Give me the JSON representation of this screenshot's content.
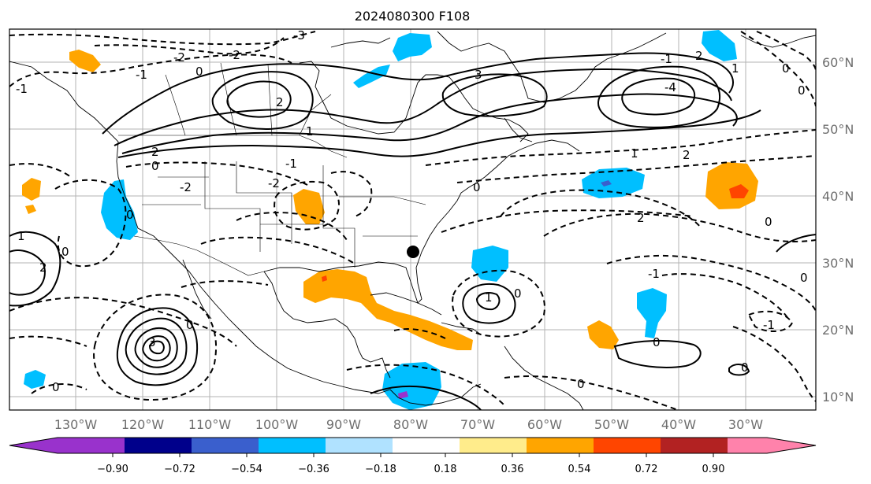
{
  "title": "2024080300 F108",
  "lon_labels": [
    "130°W",
    "120°W",
    "110°W",
    "100°W",
    "90°W",
    "80°W",
    "70°W",
    "60°W",
    "50°W",
    "40°W",
    "30°W"
  ],
  "lat_labels": [
    "60°N",
    "50°N",
    "40°N",
    "30°N",
    "20°N",
    "10°N"
  ],
  "colorbar": {
    "tick_labels": [
      "−0.90",
      "−0.72",
      "−0.54",
      "−0.36",
      "−0.18",
      "0.18",
      "0.36",
      "0.54",
      "0.72",
      "0.90"
    ],
    "colors": [
      "#9932cc",
      "#9932cc",
      "#00008b",
      "#3a5fcd",
      "#00bfff",
      "#b0e2ff",
      "#ffffff",
      "#ffec8b",
      "#ffa500",
      "#ff4500",
      "#b22222",
      "#ff82ab",
      "#ff82ab"
    ]
  },
  "contour_labels": {
    "l_m3": "-3",
    "l_m2a": "-2",
    "l_m2b": "-2",
    "l_m1a": "-1",
    "l_0a": "0",
    "l_3a": "3",
    "l_m4": "-4",
    "l_2a": "2",
    "l_m1b": "-1",
    "l_0b": "0",
    "l_1a": "1",
    "l_2b": "2",
    "l_2c": "2",
    "l_2d": "2",
    "l_0c": "0",
    "l_m1c": "-1",
    "l_m2c": "-2",
    "l_m2d": "-2",
    "l_0d": "0",
    "l_2e": "2",
    "l_0e": "0",
    "l_1b": "1",
    "l_0f": "0",
    "l_1c": "1",
    "l_0g": "0",
    "l_1d": "1",
    "l_0h": "0",
    "l_0i": "0",
    "l_m1d": "-1",
    "l_0j": "0",
    "l_0k": "0",
    "l_0l": "0",
    "l_2f": "2",
    "l_3b": "3",
    "l_0m": "0",
    "l_0n": "0",
    "l_m1e": "-1",
    "l_0o": "0",
    "l_m1f": "-1",
    "l_1e": "1"
  }
}
